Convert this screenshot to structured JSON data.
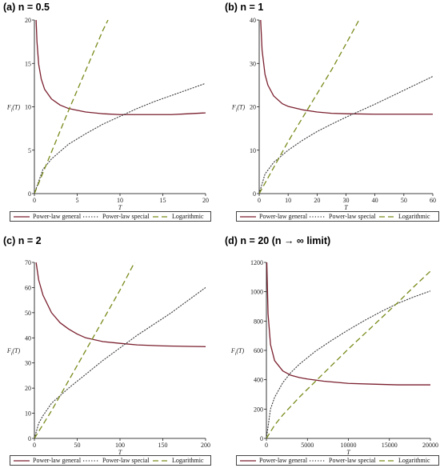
{
  "colors": {
    "general": "#7a1f2e",
    "special": "#3b3b3b",
    "logarithmic": "#7a8a1a"
  },
  "legend": {
    "general": "Power-law general",
    "special": "Power-law special",
    "logarithmic": "Logarithmic"
  },
  "chart_data": [
    {
      "type": "line",
      "title": "(a) n = 0.5",
      "xlabel": "T",
      "ylabel": "F_i(T)",
      "xlim": [
        0,
        20
      ],
      "ylim": [
        0,
        20
      ],
      "xticks": [
        "0",
        "5",
        "10",
        "15",
        "20"
      ],
      "yticks": [
        "0",
        "5",
        "10",
        "15",
        "20"
      ],
      "series": [
        {
          "name": "Power-law general",
          "style": "solid",
          "x": [
            0.2,
            0.3,
            0.5,
            0.8,
            1.2,
            2,
            3,
            4,
            5,
            6,
            8,
            10,
            12,
            14,
            16,
            18,
            20
          ],
          "y": [
            20,
            17.5,
            14.9,
            13.2,
            12.0,
            10.9,
            10.2,
            9.8,
            9.6,
            9.4,
            9.2,
            9.1,
            9.1,
            9.1,
            9.1,
            9.2,
            9.3
          ]
        },
        {
          "name": "Power-law special",
          "style": "dotted",
          "x": [
            0,
            1,
            2,
            4,
            6,
            8,
            10,
            12,
            14,
            16,
            18,
            20
          ],
          "y": [
            0,
            2.8,
            4.0,
            5.7,
            6.9,
            8.0,
            8.9,
            9.8,
            10.6,
            11.3,
            12.0,
            12.7
          ]
        },
        {
          "name": "Logarithmic",
          "style": "dashed",
          "x": [
            0,
            2,
            4,
            6,
            8,
            8.6
          ],
          "y": [
            0,
            4.8,
            9.6,
            14.2,
            18.8,
            20
          ]
        }
      ]
    },
    {
      "type": "line",
      "title": "(b) n = 1",
      "xlabel": "T",
      "ylabel": "F_i(T)",
      "xlim": [
        0,
        60
      ],
      "ylim": [
        0,
        40
      ],
      "xticks": [
        "0",
        "10",
        "20",
        "30",
        "40",
        "50",
        "60"
      ],
      "yticks": [
        "0",
        "10",
        "20",
        "30",
        "40"
      ],
      "series": [
        {
          "name": "Power-law general",
          "style": "solid",
          "x": [
            0.5,
            1,
            2,
            3,
            5,
            8,
            10,
            15,
            20,
            25,
            30,
            40,
            50,
            60
          ],
          "y": [
            40,
            33,
            27.5,
            25,
            22.5,
            20.7,
            20.1,
            19.3,
            18.8,
            18.5,
            18.4,
            18.3,
            18.3,
            18.3
          ]
        },
        {
          "name": "Power-law special",
          "style": "dotted",
          "x": [
            0,
            2,
            5,
            10,
            15,
            20,
            25,
            30,
            35,
            40,
            45,
            50,
            55,
            60
          ],
          "y": [
            0,
            4.5,
            7.2,
            10.0,
            12.3,
            14.3,
            16.0,
            17.6,
            19.1,
            20.6,
            22.2,
            23.8,
            25.4,
            27.0
          ]
        },
        {
          "name": "Logarithmic",
          "style": "dashed",
          "x": [
            0,
            5,
            10,
            15,
            20,
            25,
            30,
            34.5
          ],
          "y": [
            0,
            6,
            12,
            17.5,
            23,
            28.5,
            34.5,
            40
          ]
        }
      ]
    },
    {
      "type": "line",
      "title": "(c) n = 2",
      "xlabel": "T",
      "ylabel": "F_i(T)",
      "xlim": [
        0,
        200
      ],
      "ylim": [
        0,
        70
      ],
      "xticks": [
        "0",
        "50",
        "100",
        "150",
        "200"
      ],
      "yticks": [
        "0",
        "10",
        "20",
        "30",
        "40",
        "50",
        "60",
        "70"
      ],
      "series": [
        {
          "name": "Power-law general",
          "style": "solid",
          "x": [
            2,
            5,
            10,
            20,
            30,
            40,
            50,
            60,
            80,
            100,
            120,
            150,
            180,
            200
          ],
          "y": [
            70,
            63,
            57,
            50,
            46,
            43.5,
            41.5,
            40,
            38.5,
            37.8,
            37.2,
            36.8,
            36.6,
            36.5
          ]
        },
        {
          "name": "Power-law special",
          "style": "dotted",
          "x": [
            0,
            5,
            10,
            20,
            40,
            60,
            80,
            100,
            120,
            140,
            160,
            180,
            200
          ],
          "y": [
            0,
            6,
            9,
            14,
            20,
            25.5,
            31,
            36,
            41,
            45.5,
            50,
            55,
            60
          ]
        },
        {
          "name": "Logarithmic",
          "style": "dashed",
          "x": [
            0,
            20,
            40,
            60,
            80,
            100,
            117
          ],
          "y": [
            0,
            11,
            23,
            35,
            47,
            59,
            70
          ]
        }
      ]
    },
    {
      "type": "line",
      "title": "(d) n = 20 (n → ∞ limit)",
      "xlabel": "T",
      "ylabel": "F_i(T)",
      "xlim": [
        0,
        20000
      ],
      "ylim": [
        0,
        1200
      ],
      "xticks": [
        "0",
        "5000",
        "10000",
        "15000",
        "20000"
      ],
      "yticks": [
        "0",
        "200",
        "400",
        "600",
        "800",
        "1000",
        "1200"
      ],
      "series": [
        {
          "name": "Power-law general",
          "style": "solid",
          "x": [
            50,
            200,
            500,
            1000,
            2000,
            3000,
            4000,
            5000,
            7000,
            10000,
            13000,
            16000,
            20000
          ],
          "y": [
            1200,
            850,
            640,
            530,
            460,
            430,
            415,
            405,
            390,
            375,
            370,
            365,
            365
          ]
        },
        {
          "name": "Power-law special",
          "style": "dotted",
          "x": [
            0,
            500,
            1000,
            2000,
            3000,
            4000,
            5000,
            6000,
            8000,
            10000,
            12000,
            14000,
            16000,
            18000,
            20000
          ],
          "y": [
            0,
            200,
            280,
            380,
            450,
            505,
            550,
            595,
            670,
            740,
            805,
            865,
            920,
            965,
            1005
          ]
        },
        {
          "name": "Logarithmic",
          "style": "dashed",
          "x": [
            0,
            1000,
            2000,
            4000,
            6000,
            8000,
            10000,
            12000,
            14000,
            16000,
            18000,
            20000
          ],
          "y": [
            0,
            90,
            160,
            280,
            390,
            500,
            610,
            715,
            820,
            925,
            1035,
            1140
          ]
        }
      ]
    }
  ]
}
